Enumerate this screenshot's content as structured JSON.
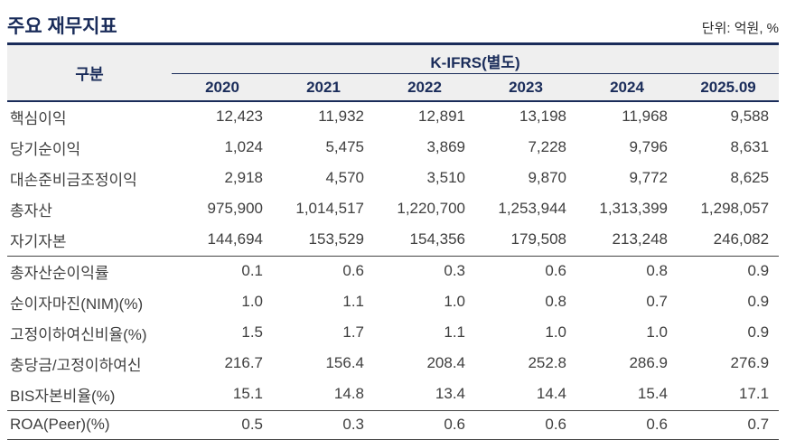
{
  "page": {
    "title": "주요 재무지표",
    "unit_note": "단위: 억원, %"
  },
  "colors": {
    "accent_navy": "#1a2c5a",
    "header_bg": "#efefef",
    "body_text": "#3f3f3f",
    "rule_dark": "#444444"
  },
  "table": {
    "corner_label": "구분",
    "group_header": "K-IFRS(별도)",
    "years": [
      "2020",
      "2021",
      "2022",
      "2023",
      "2024",
      "2025.09"
    ],
    "rows": [
      {
        "label": "핵심이익",
        "values": [
          "12,423",
          "11,932",
          "12,891",
          "13,198",
          "11,968",
          "9,588"
        ]
      },
      {
        "label": "당기순이익",
        "values": [
          "1,024",
          "5,475",
          "3,869",
          "7,228",
          "9,796",
          "8,631"
        ]
      },
      {
        "label": "대손준비금조정이익",
        "values": [
          "2,918",
          "4,570",
          "3,510",
          "9,870",
          "9,772",
          "8,625"
        ]
      },
      {
        "label": "총자산",
        "values": [
          "975,900",
          "1,014,517",
          "1,220,700",
          "1,253,944",
          "1,313,399",
          "1,298,057"
        ]
      },
      {
        "label": "자기자본",
        "values": [
          "144,694",
          "153,529",
          "154,356",
          "179,508",
          "213,248",
          "246,082"
        ]
      },
      {
        "label": "총자산순이익률",
        "values": [
          "0.1",
          "0.6",
          "0.3",
          "0.6",
          "0.8",
          "0.9"
        ]
      },
      {
        "label": "순이자마진(NIM)(%)",
        "values": [
          "1.0",
          "1.1",
          "1.0",
          "0.8",
          "0.7",
          "0.9"
        ]
      },
      {
        "label": "고정이하여신비율(%)",
        "values": [
          "1.5",
          "1.7",
          "1.1",
          "1.0",
          "1.0",
          "0.9"
        ]
      },
      {
        "label": "충당금/고정이하여신",
        "values": [
          "216.7",
          "156.4",
          "208.4",
          "252.8",
          "286.9",
          "276.9"
        ]
      },
      {
        "label": "BIS자본비율(%)",
        "values": [
          "15.1",
          "14.8",
          "13.4",
          "14.4",
          "15.4",
          "17.1"
        ]
      },
      {
        "label": "ROA(Peer)(%)",
        "values": [
          "0.5",
          "0.3",
          "0.6",
          "0.6",
          "0.6",
          "0.7"
        ]
      }
    ]
  }
}
